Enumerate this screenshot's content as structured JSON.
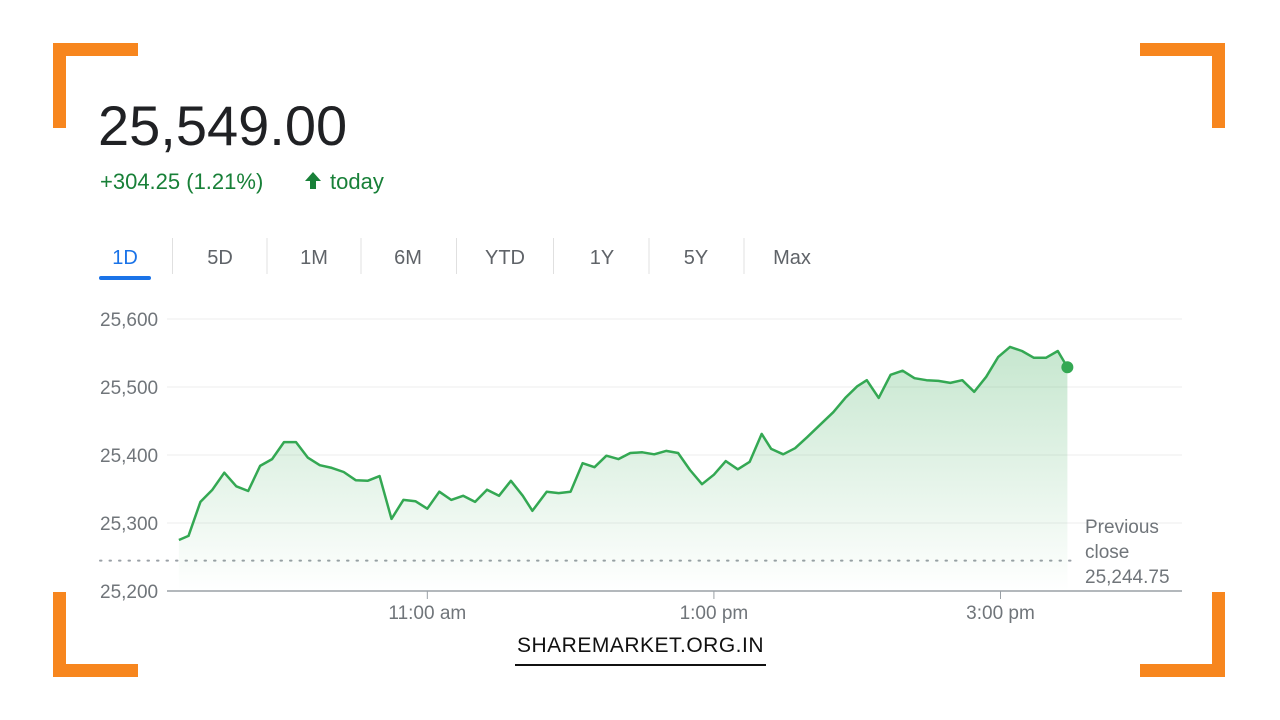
{
  "header": {
    "price": "25,549.00",
    "change": "+304.25 (1.21%)",
    "period": "today"
  },
  "tabs": {
    "items": [
      "1D",
      "5D",
      "1M",
      "6M",
      "YTD",
      "1Y",
      "5Y",
      "Max"
    ],
    "active": 0
  },
  "chart_data": {
    "type": "line",
    "x": [
      556,
      560,
      565,
      570,
      575,
      580,
      585,
      590,
      595,
      600,
      605,
      610,
      615,
      620,
      625,
      630,
      635,
      640,
      645,
      650,
      655,
      660,
      665,
      670,
      675,
      680,
      685,
      690,
      695,
      700,
      704,
      710,
      715,
      720,
      725,
      730,
      735,
      740,
      745,
      750,
      755,
      760,
      765,
      770,
      775,
      780,
      785,
      790,
      795,
      800,
      804,
      809,
      814,
      819,
      824,
      830,
      835,
      840,
      844,
      849,
      854,
      859,
      864,
      869,
      874,
      879,
      884,
      889,
      894,
      899,
      904,
      909,
      914,
      919,
      924,
      928
    ],
    "series": [
      {
        "color": "#34a853",
        "values": [
          25275,
          25281,
          25331,
          25349,
          25374,
          25354,
          25347,
          25384,
          25394,
          25419,
          25419,
          25396,
          25385,
          25381,
          25375,
          25363,
          25362,
          25369,
          25306,
          25334,
          25332,
          25321,
          25346,
          25334,
          25340,
          25331,
          25349,
          25340,
          25362,
          25340,
          25318,
          25346,
          25344,
          25346,
          25388,
          25382,
          25399,
          25394,
          25403,
          25404,
          25401,
          25406,
          25403,
          25378,
          25357,
          25371,
          25391,
          25379,
          25390,
          25431,
          25409,
          25401,
          25410,
          25426,
          25443,
          25463,
          25484,
          25501,
          25510,
          25484,
          25518,
          25524,
          25513,
          25510,
          25509,
          25506,
          25510,
          25493,
          25515,
          25544,
          25559,
          25553,
          25543,
          25543,
          25553,
          25529
        ]
      }
    ],
    "xlim": [
      551,
      976
    ],
    "xticks": [
      {
        "value": 660,
        "label": "11:00 am"
      },
      {
        "value": 780,
        "label": "1:00 pm"
      },
      {
        "value": 900,
        "label": "3:00 pm"
      }
    ],
    "ylim": [
      25200,
      25600
    ],
    "yticks": [
      {
        "value": 25200,
        "label": "25,200"
      },
      {
        "value": 25300,
        "label": "25,300"
      },
      {
        "value": 25400,
        "label": "25,400"
      },
      {
        "value": 25500,
        "label": "25,500"
      },
      {
        "value": 25600,
        "label": "25,600"
      }
    ],
    "grid": true,
    "previous_close_label": "Previous close",
    "previous_close": {
      "value": 25244.75,
      "label": "25,244.75"
    }
  },
  "footer": {
    "site": "SHAREMARKET.ORG.IN"
  }
}
